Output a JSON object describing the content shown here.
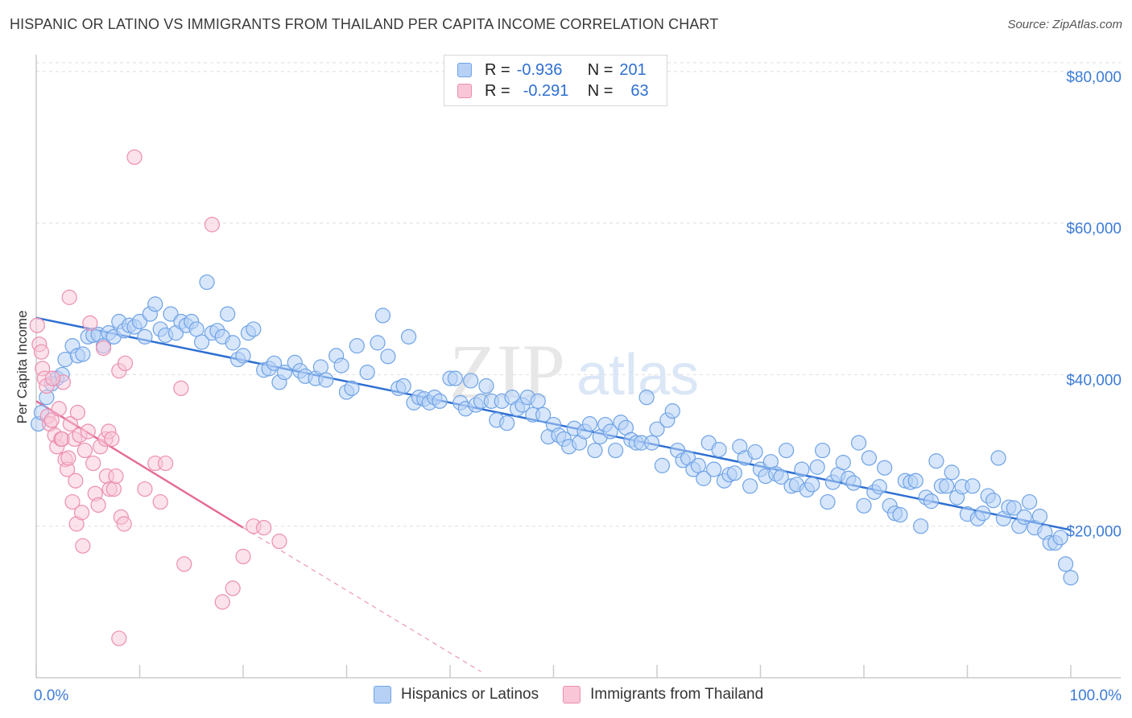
{
  "title": "HISPANIC OR LATINO VS IMMIGRANTS FROM THAILAND PER CAPITA INCOME CORRELATION CHART",
  "source": "Source: ZipAtlas.com",
  "watermark": {
    "part1": "ZIP",
    "part2": "atlas"
  },
  "colors": {
    "blue": "#6fa3e6",
    "blue_fill": "#b6d1f5",
    "blue_line": "#2e6fd2",
    "pink": "#ec8fb0",
    "pink_fill": "#f8c6d7",
    "pink_line": "#e46d96",
    "tick_text": "#3c7bd6",
    "grid": "#dddddd"
  },
  "stats": {
    "row1": {
      "r_label": "R =",
      "r_value": "-0.936",
      "n_label": "N =",
      "n_value": "201"
    },
    "row2": {
      "r_label": "R =",
      "r_value": "-0.291",
      "n_label": "N =",
      "n_value": "63"
    }
  },
  "legend": {
    "series1": "Hispanics or Latinos",
    "series2": "Immigrants from Thailand"
  },
  "chart_data": {
    "type": "scatter",
    "title": "HISPANIC OR LATINO VS IMMIGRANTS FROM THAILAND PER CAPITA INCOME CORRELATION CHART",
    "ylabel": "Per Capita Income",
    "xlabel": "",
    "x_tick_labels": [
      "0.0%",
      "100.0%"
    ],
    "y_tick_labels": [
      "$20,000",
      "$40,000",
      "$60,000",
      "$80,000"
    ],
    "y_ticks": [
      20000,
      40000,
      60000,
      80000
    ],
    "xlim": [
      0,
      100
    ],
    "ylim": [
      0,
      82000
    ],
    "grid": true,
    "legend_position": "bottom",
    "series": [
      {
        "name": "Hispanics or Latinos",
        "r": -0.936,
        "n": 201,
        "trend": {
          "x": [
            0,
            100
          ],
          "y": [
            47500,
            19500
          ]
        },
        "points": [
          [
            0.2,
            33500
          ],
          [
            0.5,
            35000
          ],
          [
            1,
            37000
          ],
          [
            1.5,
            38800
          ],
          [
            2,
            39500
          ],
          [
            2.5,
            40000
          ],
          [
            2.8,
            42000
          ],
          [
            3.5,
            43800
          ],
          [
            4,
            42500
          ],
          [
            4.5,
            42700
          ],
          [
            5,
            45000
          ],
          [
            5.5,
            45200
          ],
          [
            6,
            45300
          ],
          [
            6.5,
            43800
          ],
          [
            7,
            45500
          ],
          [
            7.5,
            45000
          ],
          [
            8,
            47000
          ],
          [
            8.5,
            45800
          ],
          [
            9,
            46500
          ],
          [
            9.5,
            46300
          ],
          [
            10,
            47000
          ],
          [
            10.5,
            45000
          ],
          [
            11,
            48000
          ],
          [
            11.5,
            49300
          ],
          [
            12,
            46000
          ],
          [
            12.5,
            45200
          ],
          [
            13,
            48000
          ],
          [
            13.5,
            45500
          ],
          [
            14,
            47000
          ],
          [
            14.5,
            46500
          ],
          [
            15,
            47000
          ],
          [
            15.5,
            46000
          ],
          [
            16,
            44300
          ],
          [
            16.5,
            52200
          ],
          [
            17,
            45500
          ],
          [
            17.5,
            45800
          ],
          [
            18,
            45000
          ],
          [
            18.5,
            48000
          ],
          [
            19,
            44200
          ],
          [
            19.5,
            42000
          ],
          [
            20,
            42500
          ],
          [
            20.5,
            45500
          ],
          [
            21,
            46000
          ],
          [
            22,
            40600
          ],
          [
            22.5,
            40800
          ],
          [
            23,
            41500
          ],
          [
            23.5,
            39000
          ],
          [
            24,
            40300
          ],
          [
            25,
            41600
          ],
          [
            25.5,
            40500
          ],
          [
            26,
            39800
          ],
          [
            27,
            39500
          ],
          [
            27.5,
            41000
          ],
          [
            28,
            39300
          ],
          [
            29,
            42500
          ],
          [
            29.5,
            41200
          ],
          [
            30,
            37700
          ],
          [
            30.5,
            38200
          ],
          [
            31,
            43800
          ],
          [
            32,
            40300
          ],
          [
            33,
            44200
          ],
          [
            33.5,
            47800
          ],
          [
            34,
            42400
          ],
          [
            35,
            38200
          ],
          [
            35.5,
            38500
          ],
          [
            36,
            45000
          ],
          [
            36.5,
            36300
          ],
          [
            37,
            37000
          ],
          [
            37.5,
            36800
          ],
          [
            38,
            36300
          ],
          [
            38.5,
            37000
          ],
          [
            39,
            36500
          ],
          [
            40,
            39500
          ],
          [
            40.5,
            39500
          ],
          [
            41,
            36300
          ],
          [
            41.5,
            35500
          ],
          [
            42,
            39200
          ],
          [
            42.5,
            36000
          ],
          [
            43,
            36500
          ],
          [
            43.5,
            38500
          ],
          [
            44,
            36500
          ],
          [
            44.5,
            34000
          ],
          [
            45,
            36500
          ],
          [
            45.5,
            33600
          ],
          [
            46,
            37000
          ],
          [
            46.5,
            35500
          ],
          [
            47,
            36000
          ],
          [
            47.5,
            37000
          ],
          [
            48,
            34700
          ],
          [
            48.5,
            36500
          ],
          [
            49,
            34700
          ],
          [
            49.5,
            31800
          ],
          [
            50,
            33400
          ],
          [
            50.5,
            32000
          ],
          [
            51,
            31500
          ],
          [
            51.5,
            30500
          ],
          [
            52,
            32900
          ],
          [
            52.5,
            31000
          ],
          [
            53,
            32500
          ],
          [
            53.5,
            33500
          ],
          [
            54,
            30000
          ],
          [
            54.5,
            31800
          ],
          [
            55,
            33400
          ],
          [
            55.5,
            32500
          ],
          [
            56,
            30000
          ],
          [
            56.5,
            33700
          ],
          [
            57,
            33000
          ],
          [
            57.5,
            31400
          ],
          [
            58,
            31000
          ],
          [
            58.5,
            31000
          ],
          [
            59,
            37000
          ],
          [
            59.5,
            31000
          ],
          [
            60,
            32800
          ],
          [
            60.5,
            28000
          ],
          [
            61,
            34000
          ],
          [
            61.5,
            35200
          ],
          [
            62,
            30000
          ],
          [
            62.5,
            28700
          ],
          [
            63,
            29000
          ],
          [
            63.5,
            27500
          ],
          [
            64,
            28000
          ],
          [
            64.5,
            26300
          ],
          [
            65,
            31000
          ],
          [
            65.5,
            27500
          ],
          [
            66,
            30100
          ],
          [
            66.5,
            26000
          ],
          [
            67,
            26800
          ],
          [
            67.5,
            27000
          ],
          [
            68,
            30500
          ],
          [
            68.5,
            29000
          ],
          [
            69,
            25300
          ],
          [
            69.5,
            29800
          ],
          [
            70,
            27500
          ],
          [
            70.5,
            26600
          ],
          [
            71,
            28500
          ],
          [
            71.5,
            26900
          ],
          [
            72,
            26500
          ],
          [
            72.5,
            30000
          ],
          [
            73,
            25300
          ],
          [
            73.5,
            25500
          ],
          [
            74,
            27500
          ],
          [
            74.5,
            24800
          ],
          [
            75,
            25500
          ],
          [
            75.5,
            27800
          ],
          [
            76,
            30000
          ],
          [
            76.5,
            23200
          ],
          [
            77,
            25800
          ],
          [
            77.5,
            26800
          ],
          [
            78,
            28400
          ],
          [
            78.5,
            26300
          ],
          [
            79,
            25700
          ],
          [
            79.5,
            31000
          ],
          [
            80,
            22700
          ],
          [
            80.5,
            29000
          ],
          [
            81,
            24500
          ],
          [
            81.5,
            25200
          ],
          [
            82,
            27700
          ],
          [
            82.5,
            22700
          ],
          [
            83,
            21700
          ],
          [
            83.5,
            21500
          ],
          [
            84,
            26000
          ],
          [
            84.5,
            25800
          ],
          [
            85,
            26000
          ],
          [
            85.5,
            20000
          ],
          [
            86,
            23800
          ],
          [
            86.5,
            23300
          ],
          [
            87,
            28600
          ],
          [
            87.5,
            25300
          ],
          [
            88,
            25300
          ],
          [
            88.5,
            27100
          ],
          [
            89,
            23800
          ],
          [
            89.5,
            25200
          ],
          [
            90,
            21600
          ],
          [
            90.5,
            25300
          ],
          [
            91,
            21000
          ],
          [
            91.5,
            21700
          ],
          [
            92,
            24000
          ],
          [
            92.5,
            23400
          ],
          [
            93,
            29000
          ],
          [
            93.5,
            21000
          ],
          [
            94,
            22500
          ],
          [
            94.5,
            22400
          ],
          [
            95,
            20000
          ],
          [
            95.5,
            21200
          ],
          [
            96,
            23200
          ],
          [
            96.5,
            19800
          ],
          [
            97,
            21300
          ],
          [
            97.5,
            19200
          ],
          [
            98,
            17800
          ],
          [
            98.5,
            17800
          ],
          [
            99,
            18500
          ],
          [
            99.5,
            15000
          ],
          [
            100,
            13200
          ]
        ]
      },
      {
        "name": "Immigrants from Thailand",
        "r": -0.291,
        "n": 63,
        "trend": {
          "x": [
            0,
            20
          ],
          "y": [
            36500,
            19800
          ]
        },
        "trend_extension": {
          "x": [
            20,
            43
          ],
          "y": [
            19800,
            800
          ]
        },
        "points": [
          [
            0.1,
            46500
          ],
          [
            0.3,
            44000
          ],
          [
            0.5,
            43000
          ],
          [
            0.6,
            40800
          ],
          [
            0.8,
            39500
          ],
          [
            1,
            38500
          ],
          [
            1.1,
            34500
          ],
          [
            1.3,
            33500
          ],
          [
            1.5,
            34000
          ],
          [
            1.8,
            32000
          ],
          [
            2,
            30500
          ],
          [
            2.2,
            35500
          ],
          [
            2.4,
            31500
          ],
          [
            2.5,
            31500
          ],
          [
            2.6,
            39000
          ],
          [
            2.8,
            28800
          ],
          [
            3,
            27500
          ],
          [
            3.1,
            29000
          ],
          [
            3.3,
            33500
          ],
          [
            3.5,
            23200
          ],
          [
            3.7,
            31500
          ],
          [
            3.8,
            26000
          ],
          [
            3.9,
            20300
          ],
          [
            4,
            35000
          ],
          [
            4.2,
            32000
          ],
          [
            4.4,
            21800
          ],
          [
            4.5,
            17400
          ],
          [
            4.7,
            30000
          ],
          [
            5,
            32500
          ],
          [
            5.2,
            46800
          ],
          [
            5.5,
            28300
          ],
          [
            5.7,
            24300
          ],
          [
            6,
            22800
          ],
          [
            6.2,
            30500
          ],
          [
            6.5,
            43500
          ],
          [
            6.7,
            31500
          ],
          [
            6.8,
            26600
          ],
          [
            7,
            32500
          ],
          [
            7.1,
            24900
          ],
          [
            7.3,
            31500
          ],
          [
            7.5,
            24900
          ],
          [
            7.7,
            26600
          ],
          [
            8,
            40500
          ],
          [
            8.2,
            21200
          ],
          [
            8.5,
            20300
          ],
          [
            8.6,
            41500
          ],
          [
            9.5,
            68700
          ],
          [
            10.5,
            24900
          ],
          [
            11.5,
            28300
          ],
          [
            12,
            23200
          ],
          [
            12.5,
            28300
          ],
          [
            14,
            38200
          ],
          [
            14.3,
            15000
          ],
          [
            17,
            59800
          ],
          [
            18,
            10000
          ],
          [
            19,
            11800
          ],
          [
            20,
            16000
          ],
          [
            21,
            20000
          ],
          [
            22,
            19800
          ],
          [
            23.5,
            18000
          ],
          [
            8,
            5200
          ],
          [
            3.2,
            50200
          ],
          [
            1.6,
            39500
          ]
        ]
      }
    ]
  }
}
